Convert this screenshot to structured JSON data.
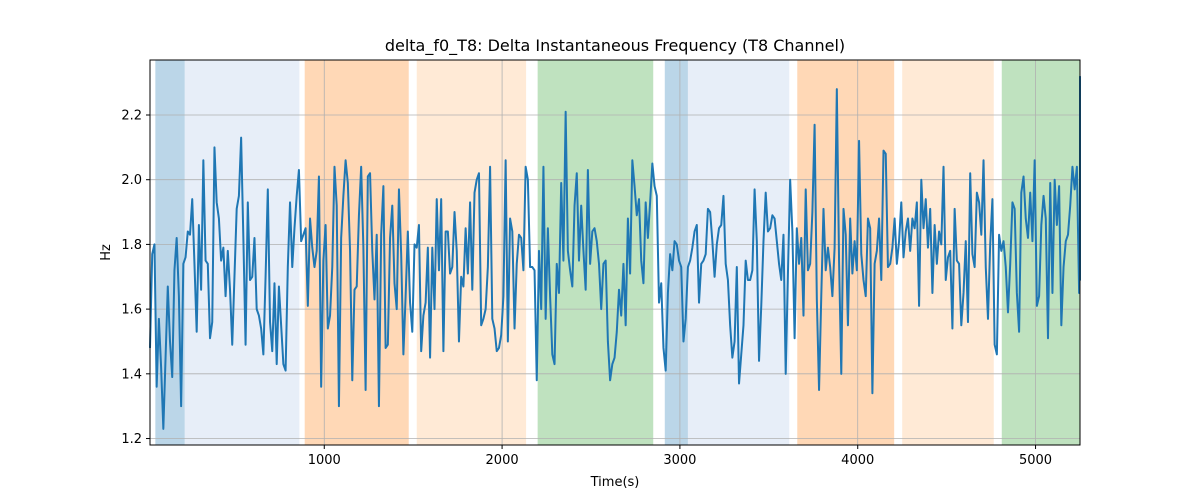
{
  "chart_data": {
    "type": "line",
    "title": "delta_f0_T8: Delta Instantaneous Frequency (T8 Channel)",
    "xlabel": "Time(s)",
    "ylabel": "Hz",
    "xlim": [
      20,
      5250
    ],
    "ylim": [
      1.18,
      2.37
    ],
    "xticks": [
      1000,
      2000,
      3000,
      4000,
      5000
    ],
    "yticks": [
      1.2,
      1.4,
      1.6,
      1.8,
      2.0,
      2.2
    ],
    "grid": true,
    "line_color": "#1f77b4",
    "regions": [
      {
        "x0": 50,
        "x1": 215,
        "color": "#1f77b4",
        "opacity": 0.3
      },
      {
        "x0": 215,
        "x1": 860,
        "color": "#aec7e8",
        "opacity": 0.3
      },
      {
        "x0": 890,
        "x1": 1475,
        "color": "#ff7f0e",
        "opacity": 0.3
      },
      {
        "x0": 1520,
        "x1": 2135,
        "color": "#ffbb78",
        "opacity": 0.3
      },
      {
        "x0": 2200,
        "x1": 2850,
        "color": "#2ca02c",
        "opacity": 0.3
      },
      {
        "x0": 2915,
        "x1": 3045,
        "color": "#1f77b4",
        "opacity": 0.3
      },
      {
        "x0": 3045,
        "x1": 3615,
        "color": "#aec7e8",
        "opacity": 0.3
      },
      {
        "x0": 3660,
        "x1": 4205,
        "color": "#ff7f0e",
        "opacity": 0.3
      },
      {
        "x0": 4250,
        "x1": 4765,
        "color": "#ffbb78",
        "opacity": 0.3
      },
      {
        "x0": 4810,
        "x1": 5250,
        "color": "#2ca02c",
        "opacity": 0.3
      }
    ],
    "series": [
      {
        "x_start": 20,
        "x_step": 12.5,
        "values": [
          1.48,
          1.77,
          1.8,
          1.36,
          1.57,
          1.42,
          1.23,
          1.45,
          1.67,
          1.5,
          1.39,
          1.72,
          1.82,
          1.64,
          1.3,
          1.74,
          1.76,
          1.84,
          1.83,
          1.94,
          1.74,
          1.53,
          1.86,
          1.66,
          2.06,
          1.75,
          1.74,
          1.51,
          1.56,
          2.1,
          1.93,
          1.88,
          1.75,
          1.79,
          1.64,
          1.78,
          1.66,
          1.49,
          1.7,
          1.91,
          1.95,
          2.13,
          1.82,
          1.49,
          1.93,
          1.69,
          1.7,
          1.82,
          1.6,
          1.58,
          1.54,
          1.46,
          1.7,
          1.97,
          1.56,
          1.47,
          1.68,
          1.43,
          1.67,
          1.55,
          1.43,
          1.41,
          1.73,
          1.93,
          1.73,
          1.85,
          1.95,
          2.03,
          1.81,
          1.83,
          1.85,
          1.61,
          1.88,
          1.79,
          1.73,
          1.78,
          2.01,
          1.36,
          1.75,
          1.86,
          1.54,
          1.58,
          1.73,
          2.04,
          1.92,
          1.3,
          1.82,
          1.95,
          2.06,
          1.99,
          1.78,
          1.38,
          1.66,
          1.67,
          1.89,
          2.04,
          1.79,
          1.35,
          2.01,
          2.02,
          1.78,
          1.63,
          1.83,
          1.3,
          1.83,
          1.98,
          1.48,
          1.49,
          1.82,
          1.92,
          1.68,
          1.6,
          1.97,
          1.77,
          1.46,
          1.64,
          1.84,
          1.62,
          1.53,
          1.8,
          1.79,
          1.86,
          1.47,
          1.58,
          1.62,
          1.79,
          1.45,
          1.79,
          1.6,
          1.94,
          1.72,
          1.94,
          1.47,
          1.84,
          1.84,
          1.71,
          1.73,
          1.9,
          1.78,
          1.5,
          1.7,
          1.67,
          1.85,
          1.71,
          1.93,
          1.66,
          1.96,
          2.0,
          2.02,
          1.55,
          1.57,
          1.6,
          1.73,
          2.04,
          1.57,
          1.54,
          1.47,
          1.48,
          1.52,
          1.64,
          2.06,
          1.5,
          1.88,
          1.84,
          1.54,
          1.74,
          1.83,
          1.82,
          1.72,
          2.04,
          2.0,
          1.73,
          1.73,
          1.72,
          1.38,
          1.78,
          1.6,
          2.04,
          1.57,
          1.85,
          1.64,
          1.46,
          1.43,
          1.74,
          1.65,
          1.99,
          1.75,
          2.21,
          1.78,
          1.72,
          1.67,
          1.92,
          2.02,
          1.75,
          1.92,
          1.78,
          1.66,
          2.03,
          1.74,
          1.84,
          1.85,
          1.81,
          1.74,
          1.6,
          1.74,
          1.75,
          1.5,
          1.38,
          1.43,
          1.45,
          1.53,
          1.66,
          1.58,
          1.74,
          1.55,
          1.88,
          1.71,
          2.06,
          1.98,
          1.89,
          1.94,
          1.75,
          1.68,
          1.93,
          1.82,
          1.93,
          2.05,
          1.98,
          1.95,
          1.62,
          1.68,
          1.48,
          1.41,
          1.65,
          1.77,
          1.72,
          1.81,
          1.8,
          1.75,
          1.73,
          1.5,
          1.57,
          1.73,
          1.75,
          1.79,
          1.84,
          1.86,
          1.62,
          1.74,
          1.75,
          1.77,
          1.91,
          1.9,
          1.81,
          1.7,
          1.8,
          1.85,
          1.86,
          1.95,
          1.74,
          1.69,
          1.55,
          1.45,
          1.5,
          1.73,
          1.37,
          1.46,
          1.55,
          1.75,
          1.69,
          1.69,
          1.72,
          1.97,
          1.81,
          1.44,
          1.61,
          1.81,
          1.96,
          1.84,
          1.85,
          1.89,
          1.88,
          1.81,
          1.74,
          1.69,
          1.83,
          1.4,
          1.71,
          2.0,
          1.84,
          1.51,
          1.85,
          1.74,
          1.82,
          1.58,
          1.97,
          1.72,
          1.74,
          1.9,
          2.17,
          1.63,
          1.35,
          1.64,
          1.91,
          1.72,
          1.79,
          1.73,
          1.64,
          1.79,
          2.28,
          1.75,
          1.4,
          1.91,
          1.83,
          1.55,
          1.88,
          1.71,
          1.81,
          1.72,
          2.12,
          1.77,
          1.69,
          1.64,
          1.88,
          1.85,
          1.34,
          1.74,
          1.78,
          1.88,
          1.69,
          2.09,
          2.08,
          1.73,
          1.74,
          1.79,
          1.88,
          1.74,
          1.81,
          1.93,
          1.76,
          1.84,
          1.88,
          1.78,
          1.88,
          1.85,
          1.93,
          1.61,
          2.0,
          1.85,
          1.94,
          1.79,
          1.91,
          1.65,
          1.86,
          1.74,
          1.84,
          1.8,
          2.04,
          1.69,
          1.76,
          1.78,
          1.54,
          1.91,
          1.75,
          1.74,
          1.55,
          1.65,
          1.81,
          1.56,
          2.02,
          1.77,
          1.73,
          1.96,
          1.93,
          1.83,
          2.06,
          1.73,
          1.57,
          1.8,
          1.94,
          1.49,
          1.46,
          1.83,
          1.78,
          1.81,
          1.73,
          1.59,
          1.74,
          1.93,
          1.91,
          1.65,
          1.53,
          1.96,
          2.01,
          1.88,
          1.82,
          1.96,
          1.81,
          2.06,
          1.61,
          1.64,
          1.86,
          1.95,
          1.88,
          1.51,
          1.99,
          1.65,
          2.0,
          1.86,
          1.98,
          1.55,
          1.73,
          1.81,
          1.83,
          1.92,
          2.04,
          1.97,
          2.04,
          1.65,
          1.78,
          1.75,
          1.69,
          1.82,
          1.84,
          1.7,
          2.32
        ]
      }
    ]
  }
}
